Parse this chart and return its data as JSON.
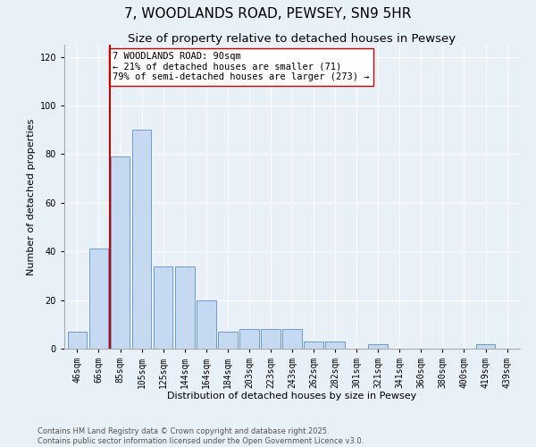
{
  "title": "7, WOODLANDS ROAD, PEWSEY, SN9 5HR",
  "subtitle": "Size of property relative to detached houses in Pewsey",
  "xlabel": "Distribution of detached houses by size in Pewsey",
  "ylabel": "Number of detached properties",
  "categories": [
    "46sqm",
    "66sqm",
    "85sqm",
    "105sqm",
    "125sqm",
    "144sqm",
    "164sqm",
    "184sqm",
    "203sqm",
    "223sqm",
    "243sqm",
    "262sqm",
    "282sqm",
    "301sqm",
    "321sqm",
    "341sqm",
    "360sqm",
    "380sqm",
    "400sqm",
    "419sqm",
    "439sqm"
  ],
  "values": [
    7,
    41,
    79,
    90,
    34,
    34,
    20,
    7,
    8,
    8,
    8,
    3,
    3,
    0,
    2,
    0,
    0,
    0,
    0,
    2,
    0
  ],
  "bar_color": "#c5d9f1",
  "bar_edge_color": "#5b8fcb",
  "vline_color": "#cc0000",
  "vline_x": 1.5,
  "annotation_text": "7 WOODLANDS ROAD: 90sqm\n← 21% of detached houses are smaller (71)\n79% of semi-detached houses are larger (273) →",
  "annotation_box_color": "#ffffff",
  "annotation_box_edge": "#cc0000",
  "ylim": [
    0,
    125
  ],
  "yticks": [
    0,
    20,
    40,
    60,
    80,
    100,
    120
  ],
  "background_color": "#e8f0f8",
  "footer_line1": "Contains HM Land Registry data © Crown copyright and database right 2025.",
  "footer_line2": "Contains public sector information licensed under the Open Government Licence v3.0.",
  "title_fontsize": 11,
  "subtitle_fontsize": 9.5,
  "label_fontsize": 8,
  "tick_fontsize": 7,
  "annotation_fontsize": 7.5,
  "footer_fontsize": 6
}
